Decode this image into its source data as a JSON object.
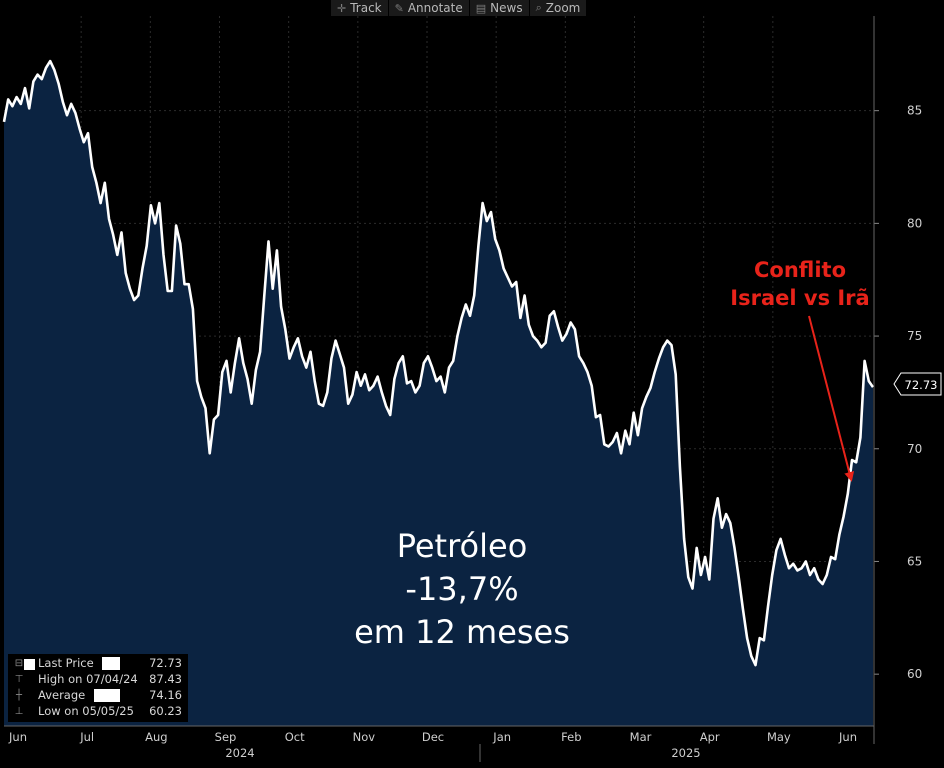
{
  "toolbar": {
    "items": [
      {
        "label": "Track",
        "icon": "crosshair-icon"
      },
      {
        "label": "Annotate",
        "icon": "pen-icon"
      },
      {
        "label": "News",
        "icon": "newspaper-icon"
      },
      {
        "label": "Zoom",
        "icon": "magnifier-icon"
      }
    ]
  },
  "price_tag": "72.73",
  "annotation": {
    "title_line1": "Conflito",
    "title_line2": "Israel vs Irã",
    "color": "#e8231a"
  },
  "headline": {
    "line1": "Petróleo",
    "line2": "-13,7%",
    "line3": "em 12 meses"
  },
  "stats": {
    "last_label": "Last Price",
    "last_value": "72.73",
    "high_label": "High on 07/04/24",
    "high_value": "87.43",
    "avg_label": "Average",
    "avg_value": "74.16",
    "low_label": "Low on 05/05/25",
    "low_value": "60.23"
  },
  "colors": {
    "area_fill": "#0b2341",
    "line": "#ffffff",
    "background": "#000000",
    "grid": "#2b2b2b",
    "axis_text": "#cfcfcf"
  },
  "chart_data": {
    "type": "area",
    "x_tick_labels": [
      "Jun",
      "Jul",
      "Aug",
      "Sep",
      "Oct",
      "Nov",
      "Dec",
      "Jan",
      "Feb",
      "Mar",
      "Apr",
      "May",
      "Jun"
    ],
    "year_labels": [
      "2024",
      "2025"
    ],
    "y_ticks": [
      60,
      65,
      70,
      75,
      80,
      85
    ],
    "ylim": [
      57.7,
      89.2
    ],
    "y_axis_position": "right",
    "grid": true,
    "series": [
      {
        "values": [
          84.5,
          85.5,
          85.2,
          85.6,
          85.3,
          86.0,
          85.1,
          86.3,
          86.6,
          86.4,
          86.9,
          87.2,
          86.8,
          86.2,
          85.4,
          84.8,
          85.3,
          84.9,
          84.2,
          83.6,
          84.0,
          82.5,
          81.8,
          80.9,
          81.8,
          80.2,
          79.5,
          78.6,
          79.6,
          77.8,
          77.1,
          76.6,
          76.8,
          78.0,
          79.0,
          80.8,
          80.0,
          80.9,
          78.6,
          77.0,
          77.0,
          79.9,
          79.1,
          77.3,
          77.3,
          76.2,
          73.0,
          72.3,
          71.8,
          69.8,
          71.3,
          71.5,
          73.4,
          73.9,
          72.5,
          73.8,
          74.9,
          73.8,
          73.1,
          72.0,
          73.5,
          74.3,
          76.8,
          79.2,
          77.1,
          78.8,
          76.3,
          75.3,
          74.0,
          74.5,
          74.9,
          74.1,
          73.6,
          74.3,
          73.0,
          72.0,
          71.9,
          72.5,
          74.0,
          74.8,
          74.2,
          73.6,
          72.0,
          72.4,
          73.4,
          72.8,
          73.3,
          72.6,
          72.8,
          73.2,
          72.5,
          71.9,
          71.5,
          73.1,
          73.8,
          74.1,
          72.9,
          73.0,
          72.5,
          72.8,
          73.8,
          74.1,
          73.6,
          73.0,
          73.2,
          72.5,
          73.6,
          73.9,
          75.0,
          75.8,
          76.4,
          75.9,
          76.8,
          79.0,
          80.9,
          80.1,
          80.5,
          79.3,
          78.8,
          78.0,
          77.6,
          77.2,
          77.4,
          75.8,
          76.8,
          75.5,
          75.0,
          74.8,
          74.5,
          74.7,
          75.9,
          76.1,
          75.4,
          74.8,
          75.1,
          75.6,
          75.3,
          74.1,
          73.8,
          73.4,
          72.8,
          71.4,
          71.5,
          70.2,
          70.1,
          70.3,
          70.7,
          69.8,
          70.8,
          70.2,
          71.6,
          70.6,
          71.8,
          72.3,
          72.7,
          73.4,
          74.0,
          74.5,
          74.8,
          74.6,
          73.3,
          69.2,
          66.0,
          64.3,
          63.8,
          65.6,
          64.4,
          65.2,
          64.2,
          66.9,
          67.8,
          66.5,
          67.1,
          66.7,
          65.6,
          64.3,
          62.9,
          61.6,
          60.8,
          60.4,
          61.6,
          61.5,
          63.0,
          64.4,
          65.5,
          66.0,
          65.3,
          64.7,
          64.9,
          64.6,
          64.7,
          65.0,
          64.4,
          64.7,
          64.2,
          64.0,
          64.4,
          65.2,
          65.1,
          66.2,
          67.0,
          68.0,
          69.5,
          69.4,
          70.5,
          73.9,
          73.0,
          72.73
        ]
      }
    ]
  }
}
